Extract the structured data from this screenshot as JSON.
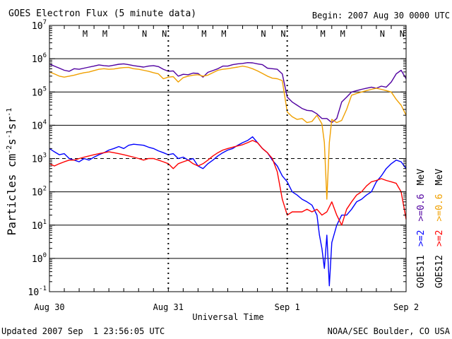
{
  "chart_data": {
    "type": "line",
    "title": "GOES Electron Flux (5 minute data)",
    "begin_label": "Begin: 2007 Aug 30 0000 UTC",
    "xlabel": "Universal Time",
    "ylabel": "Particles cm-2s-1sr-1",
    "ylabel_parts": {
      "base": "Particles cm",
      "e1": "-2",
      "mid1": "s",
      "e2": "-1",
      "mid2": "sr",
      "e3": "-1"
    },
    "log_scale": true,
    "xlim_hours": [
      0,
      72
    ],
    "ylim": [
      0.1,
      10000000
    ],
    "y_ticks": [
      {
        "value": 0.1,
        "base": "10",
        "exp": "-1"
      },
      {
        "value": 1,
        "base": "10",
        "exp": "0"
      },
      {
        "value": 10,
        "base": "10",
        "exp": "1"
      },
      {
        "value": 100,
        "base": "10",
        "exp": "2"
      },
      {
        "value": 1000,
        "base": "10",
        "exp": "3"
      },
      {
        "value": 10000,
        "base": "10",
        "exp": "4"
      },
      {
        "value": 100000,
        "base": "10",
        "exp": "5"
      },
      {
        "value": 1000000,
        "base": "10",
        "exp": "6"
      },
      {
        "value": 10000000,
        "base": "10",
        "exp": "7"
      }
    ],
    "x_ticks": [
      {
        "hour": 0,
        "label": "Aug 30"
      },
      {
        "hour": 24,
        "label": "Aug 31"
      },
      {
        "hour": 48,
        "label": "Sep 1"
      },
      {
        "hour": 72,
        "label": "Sep 2"
      }
    ],
    "threshold_line": 1000,
    "mn_markers": [
      {
        "hour": 8.0,
        "label": "M",
        "color": "#d00000"
      },
      {
        "hour": 12.0,
        "label": "M",
        "color": "#0000d0"
      },
      {
        "hour": 20.0,
        "label": "N",
        "color": "#d00000"
      },
      {
        "hour": 24.0,
        "label": "N",
        "color": "#0000d0"
      },
      {
        "hour": 32.0,
        "label": "M",
        "color": "#d00000"
      },
      {
        "hour": 36.0,
        "label": "M",
        "color": "#0000d0"
      },
      {
        "hour": 44.0,
        "label": "N",
        "color": "#d00000"
      },
      {
        "hour": 48.0,
        "label": "N",
        "color": "#0000d0"
      },
      {
        "hour": 56.0,
        "label": "M",
        "color": "#d00000"
      },
      {
        "hour": 60.0,
        "label": "M",
        "color": "#0000d0"
      },
      {
        "hour": 68.0,
        "label": "N",
        "color": "#d00000"
      },
      {
        "hour": 72.0,
        "label": "N",
        "color": "#0000d0"
      }
    ],
    "right_legend": [
      {
        "text": "GOES11  >=2  >=0.6  MeV",
        "column": 1
      },
      {
        "text": "GOES12  >=2  >=0.6  MeV",
        "column": 2
      }
    ],
    "legend_segments": {
      "col1": [
        {
          "text": "GOES11",
          "color": "#000000"
        },
        {
          "text": ">=2",
          "color": "#0000ff"
        },
        {
          "text": ">=0.6",
          "color": "#5000a0"
        },
        {
          "text": "MeV",
          "color": "#000000"
        }
      ],
      "col2": [
        {
          "text": "GOES12",
          "color": "#000000"
        },
        {
          "text": ">=2",
          "color": "#ff0000"
        },
        {
          "text": ">=0.6",
          "color": "#f0a000"
        },
        {
          "text": "MeV",
          "color": "#000000"
        }
      ]
    },
    "series": [
      {
        "color": "#5000a0",
        "x": [
          0,
          1,
          2,
          3,
          4,
          5,
          6,
          7,
          8,
          9,
          10,
          11,
          12,
          13,
          14,
          15,
          16,
          17,
          18,
          19,
          20,
          21,
          22,
          23,
          24,
          25,
          26,
          27,
          28,
          29,
          30,
          31,
          32,
          33,
          34,
          35,
          36,
          37,
          38,
          39,
          40,
          41,
          42,
          43,
          44,
          45,
          46,
          47,
          48,
          49,
          50,
          51,
          52,
          53,
          54,
          55,
          56,
          57,
          58,
          59,
          60,
          61,
          62,
          63,
          64,
          65,
          66,
          67,
          68,
          69,
          70,
          71,
          72
        ],
        "y": [
          700000,
          600000,
          520000,
          450000,
          420000,
          500000,
          480000,
          520000,
          560000,
          600000,
          650000,
          620000,
          600000,
          640000,
          680000,
          700000,
          660000,
          620000,
          590000,
          560000,
          600000,
          620000,
          580000,
          480000,
          420000,
          430000,
          300000,
          340000,
          330000,
          370000,
          360000,
          280000,
          390000,
          440000,
          500000,
          600000,
          600000,
          660000,
          700000,
          720000,
          760000,
          750000,
          700000,
          660000,
          520000,
          500000,
          480000,
          350000,
          70000,
          50000,
          40000,
          32000,
          28000,
          27000,
          22000,
          16000,
          16000,
          12000,
          16000,
          50000,
          70000,
          100000,
          110000,
          120000,
          130000,
          140000,
          130000,
          150000,
          140000,
          200000,
          350000,
          450000,
          250000
        ]
      },
      {
        "color": "#f0a000",
        "x": [
          0,
          1,
          2,
          3,
          4,
          5,
          6,
          7,
          8,
          9,
          10,
          11,
          12,
          13,
          14,
          15,
          16,
          17,
          18,
          19,
          20,
          21,
          22,
          23,
          24,
          25,
          26,
          27,
          28,
          29,
          30,
          31,
          32,
          33,
          34,
          35,
          36,
          37,
          38,
          39,
          40,
          41,
          42,
          43,
          44,
          45,
          46,
          47,
          48,
          49,
          50,
          51,
          52,
          53,
          54,
          55,
          55.5,
          56,
          56.5,
          57,
          58,
          59,
          60,
          61,
          62,
          63,
          64,
          65,
          66,
          67,
          68,
          69,
          70,
          71,
          72
        ],
        "y": [
          400000,
          350000,
          300000,
          280000,
          300000,
          320000,
          350000,
          380000,
          400000,
          440000,
          480000,
          500000,
          480000,
          490000,
          520000,
          540000,
          550000,
          500000,
          480000,
          450000,
          420000,
          380000,
          350000,
          250000,
          280000,
          290000,
          200000,
          270000,
          300000,
          320000,
          330000,
          300000,
          320000,
          380000,
          450000,
          480000,
          500000,
          530000,
          560000,
          600000,
          560000,
          500000,
          430000,
          360000,
          300000,
          260000,
          250000,
          220000,
          25000,
          18000,
          15000,
          16000,
          12000,
          13000,
          20000,
          11000,
          3000,
          60,
          3000,
          15000,
          12000,
          14000,
          30000,
          80000,
          90000,
          100000,
          110000,
          120000,
          130000,
          120000,
          110000,
          100000,
          60000,
          40000,
          20000
        ]
      },
      {
        "color": "#0000ff",
        "x": [
          0,
          1,
          2,
          3,
          4,
          5,
          6,
          7,
          8,
          9,
          10,
          11,
          12,
          13,
          14,
          15,
          16,
          17,
          18,
          19,
          20,
          21,
          22,
          23,
          24,
          25,
          26,
          27,
          28,
          29,
          30,
          31,
          32,
          33,
          34,
          35,
          36,
          37,
          38,
          39,
          40,
          41,
          42,
          43,
          44,
          45,
          46,
          47,
          48,
          49,
          50,
          51,
          52,
          53,
          54,
          54.5,
          55,
          55.5,
          56,
          56.5,
          57,
          58,
          59,
          60,
          61,
          62,
          63,
          64,
          65,
          66,
          67,
          68,
          69,
          70,
          71,
          72
        ],
        "y": [
          2000,
          1600,
          1300,
          1400,
          1000,
          900,
          800,
          1000,
          900,
          1100,
          1300,
          1500,
          1800,
          2000,
          2300,
          2000,
          2500,
          2700,
          2600,
          2500,
          2200,
          2000,
          1700,
          1500,
          1300,
          1400,
          1000,
          1100,
          900,
          1000,
          600,
          500,
          700,
          900,
          1200,
          1500,
          1800,
          2000,
          2500,
          3000,
          3500,
          4500,
          3000,
          2000,
          1500,
          900,
          600,
          300,
          200,
          100,
          80,
          60,
          50,
          40,
          20,
          5,
          2,
          0.5,
          5,
          0.15,
          3,
          10,
          20,
          20,
          30,
          50,
          60,
          80,
          100,
          200,
          300,
          500,
          700,
          900,
          800,
          500
        ]
      },
      {
        "color": "#ff0000",
        "x": [
          0,
          1,
          2,
          3,
          4,
          5,
          6,
          7,
          8,
          9,
          10,
          11,
          12,
          13,
          14,
          15,
          16,
          17,
          18,
          19,
          20,
          21,
          22,
          23,
          24,
          25,
          26,
          27,
          28,
          29,
          30,
          31,
          32,
          33,
          34,
          35,
          36,
          37,
          38,
          39,
          40,
          41,
          42,
          43,
          44,
          45,
          46,
          47,
          48,
          49,
          50,
          51,
          52,
          53,
          54,
          55,
          56,
          57,
          58,
          59,
          60,
          61,
          62,
          63,
          64,
          65,
          66,
          67,
          68,
          69,
          70,
          71,
          72
        ],
        "y": [
          700,
          600,
          700,
          800,
          900,
          900,
          1000,
          1100,
          1200,
          1300,
          1400,
          1500,
          1600,
          1500,
          1400,
          1300,
          1200,
          1100,
          1000,
          900,
          1000,
          1000,
          900,
          800,
          700,
          500,
          700,
          800,
          900,
          700,
          600,
          700,
          900,
          1200,
          1500,
          1800,
          2000,
          2200,
          2400,
          2600,
          3000,
          3500,
          3000,
          2000,
          1500,
          1000,
          400,
          60,
          20,
          25,
          25,
          25,
          30,
          25,
          30,
          20,
          25,
          50,
          20,
          10,
          30,
          50,
          80,
          100,
          150,
          200,
          220,
          250,
          220,
          200,
          180,
          100,
          15
        ]
      }
    ]
  },
  "footer": {
    "updated": "Updated 2007 Sep  1 23:56:05 UTC",
    "credit": "NOAA/SEC Boulder, CO USA"
  }
}
